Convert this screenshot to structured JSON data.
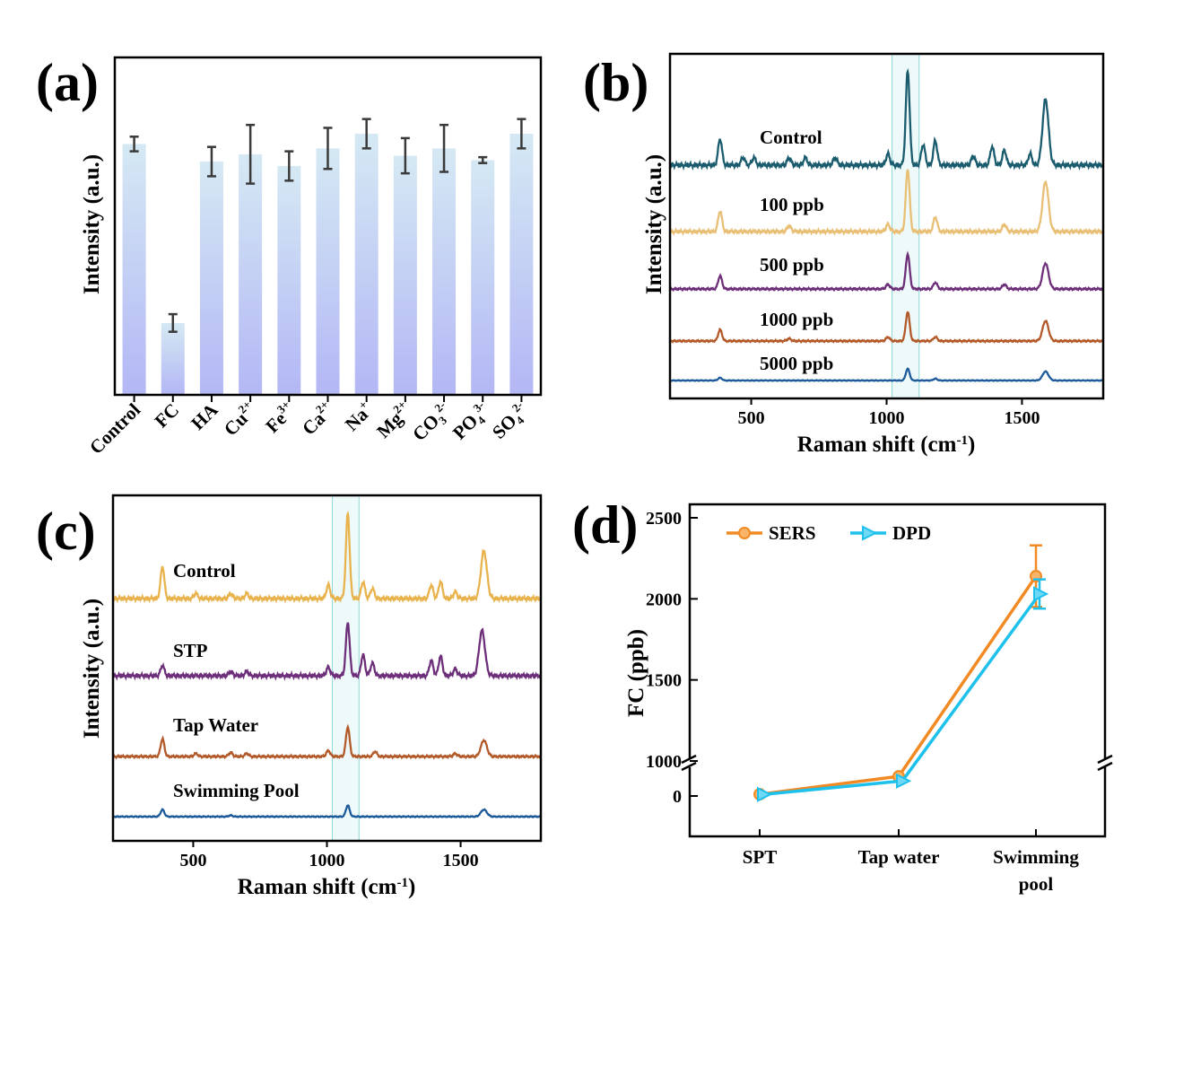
{
  "panels": {
    "a": {
      "label": "(a)",
      "chart_data": {
        "type": "bar",
        "ylabel": "Intensity (a.u.)",
        "categories": [
          "Control",
          "FC",
          "HA",
          "Cu",
          "Fe",
          "Ca",
          "Na",
          "Mg",
          "CO",
          "PO",
          "SO"
        ],
        "cat_super": [
          "",
          "",
          "",
          "2+",
          "3+",
          "2+",
          "+",
          "2+",
          "3",
          "4",
          "4"
        ],
        "cat_super2": [
          "",
          "",
          "",
          "",
          "",
          "",
          "",
          "",
          "2-",
          "3-",
          "2-"
        ],
        "values": [
          0.855,
          0.245,
          0.795,
          0.82,
          0.78,
          0.84,
          0.89,
          0.815,
          0.84,
          0.8,
          0.89
        ],
        "errors": [
          0.025,
          0.03,
          0.05,
          0.1,
          0.05,
          0.07,
          0.05,
          0.06,
          0.08,
          0.01,
          0.05
        ],
        "ylim": [
          0,
          1.15
        ],
        "bar_color_top": "#d5e9f4",
        "bar_color_bottom": "#b3b7f5",
        "error_color": "#3a3a3a"
      }
    },
    "b": {
      "label": "(b)",
      "chart_data": {
        "type": "line",
        "xlabel": "Raman shift (cm",
        "xlabel_sup": "-1",
        "xlabel_close": ")",
        "ylabel": "Intensity (a.u.)",
        "xlim": [
          200,
          1800
        ],
        "xticks": [
          500,
          1000,
          1500
        ],
        "highlight_x": [
          1020,
          1120
        ],
        "series": [
          {
            "name": "Control",
            "color": "#1a5c6e",
            "scale": 1.0,
            "peaks": [
              [
                385,
                0.28
              ],
              [
                470,
                0.08
              ],
              [
                510,
                0.08
              ],
              [
                640,
                0.08
              ],
              [
                700,
                0.08
              ],
              [
                810,
                0.08
              ],
              [
                1005,
                0.12
              ],
              [
                1078,
                1.0
              ],
              [
                1135,
                0.22
              ],
              [
                1180,
                0.26
              ],
              [
                1320,
                0.1
              ],
              [
                1390,
                0.2
              ],
              [
                1435,
                0.16
              ],
              [
                1530,
                0.12
              ],
              [
                1587,
                0.7
              ]
            ]
          },
          {
            "name": "100 ppb",
            "color": "#e8bf75",
            "scale": 0.75,
            "peaks": [
              [
                385,
                0.28
              ],
              [
                640,
                0.08
              ],
              [
                1005,
                0.1
              ],
              [
                1078,
                0.85
              ],
              [
                1180,
                0.2
              ],
              [
                1435,
                0.1
              ],
              [
                1587,
                0.68
              ]
            ]
          },
          {
            "name": "500 ppb",
            "color": "#6e2f7a",
            "scale": 0.55,
            "peaks": [
              [
                385,
                0.28
              ],
              [
                1005,
                0.1
              ],
              [
                1078,
                0.75
              ],
              [
                1180,
                0.14
              ],
              [
                1435,
                0.1
              ],
              [
                1587,
                0.55
              ]
            ]
          },
          {
            "name": "1000 ppb",
            "color": "#b35a2a",
            "scale": 0.45,
            "peaks": [
              [
                385,
                0.28
              ],
              [
                640,
                0.06
              ],
              [
                1005,
                0.1
              ],
              [
                1078,
                0.72
              ],
              [
                1180,
                0.1
              ],
              [
                1587,
                0.5
              ]
            ]
          },
          {
            "name": "5000 ppb",
            "color": "#1e5b9a",
            "scale": 0.25,
            "peaks": [
              [
                385,
                0.15
              ],
              [
                1078,
                0.65
              ],
              [
                1180,
                0.1
              ],
              [
                1587,
                0.5
              ]
            ]
          }
        ]
      }
    },
    "c": {
      "label": "(c)",
      "chart_data": {
        "type": "line",
        "xlabel": "Raman shift (cm",
        "xlabel_sup": "-1",
        "xlabel_close": ")",
        "ylabel": "Intensity (a.u.)",
        "xlim": [
          200,
          1800
        ],
        "xticks": [
          500,
          1000,
          1500
        ],
        "highlight_x": [
          1020,
          1120
        ],
        "series": [
          {
            "name": "Control",
            "color": "#e8b34c",
            "scale": 1.0,
            "peaks": [
              [
                385,
                0.38
              ],
              [
                510,
                0.06
              ],
              [
                640,
                0.06
              ],
              [
                700,
                0.06
              ],
              [
                1005,
                0.16
              ],
              [
                1078,
                1.0
              ],
              [
                1135,
                0.2
              ],
              [
                1170,
                0.12
              ],
              [
                1390,
                0.16
              ],
              [
                1425,
                0.2
              ],
              [
                1480,
                0.08
              ],
              [
                1587,
                0.56
              ]
            ]
          },
          {
            "name": "STP",
            "color": "#6e2f7a",
            "scale": 0.95,
            "peaks": [
              [
                385,
                0.12
              ],
              [
                640,
                0.05
              ],
              [
                700,
                0.05
              ],
              [
                1005,
                0.1
              ],
              [
                1078,
                0.63
              ],
              [
                1135,
                0.25
              ],
              [
                1170,
                0.15
              ],
              [
                1390,
                0.18
              ],
              [
                1425,
                0.23
              ],
              [
                1480,
                0.08
              ],
              [
                1580,
                0.53
              ]
            ]
          },
          {
            "name": "Tap Water",
            "color": "#b35a2a",
            "scale": 0.85,
            "peaks": [
              [
                385,
                0.36
              ],
              [
                510,
                0.06
              ],
              [
                640,
                0.08
              ],
              [
                700,
                0.06
              ],
              [
                1005,
                0.12
              ],
              [
                1078,
                0.6
              ],
              [
                1180,
                0.1
              ],
              [
                1480,
                0.06
              ],
              [
                1587,
                0.33
              ]
            ]
          },
          {
            "name": "Swimming Pool",
            "color": "#1e5b9a",
            "scale": 0.5,
            "peaks": [
              [
                385,
                0.28
              ],
              [
                640,
                0.05
              ],
              [
                1078,
                0.45
              ],
              [
                1587,
                0.28
              ]
            ]
          }
        ]
      }
    },
    "d": {
      "label": "(d)",
      "chart_data": {
        "type": "line",
        "ylabel": "FC (ppb)",
        "categories": [
          "SPT",
          "Tap water",
          "Swimming pool"
        ],
        "category_lines": [
          [
            "SPT"
          ],
          [
            "Tap water"
          ],
          [
            "Swimming",
            "pool"
          ]
        ],
        "yticks": [
          "0",
          "1000",
          "1500",
          "2000",
          "2500"
        ],
        "broken_axis": true,
        "series": [
          {
            "name": "SERS",
            "color": "#f28a24",
            "marker": "circle",
            "values": [
              50,
              560,
              2140
            ],
            "errors": [
              0,
              0,
              190
            ]
          },
          {
            "name": "DPD",
            "color": "#1ec0ec",
            "marker": "triangle-right",
            "values": [
              45,
              430,
              2030
            ],
            "errors": [
              0,
              0,
              90
            ]
          }
        ]
      }
    }
  }
}
